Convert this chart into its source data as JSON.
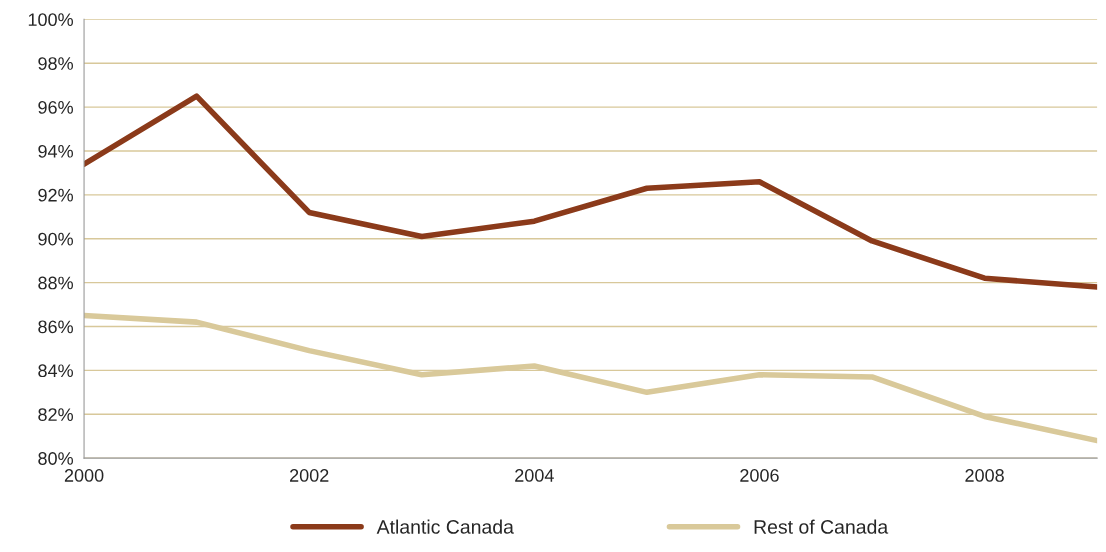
{
  "chart_data": {
    "type": "line",
    "x": [
      2000,
      2001,
      2002,
      2003,
      2004,
      2005,
      2006,
      2007,
      2008,
      2009
    ],
    "series": [
      {
        "name": "Atlantic Canada",
        "color": "#8b3a1a",
        "values": [
          93.4,
          96.5,
          91.2,
          90.1,
          90.8,
          92.3,
          92.6,
          89.9,
          88.2,
          87.8
        ]
      },
      {
        "name": "Rest of Canada",
        "color": "#d9c99a",
        "values": [
          86.5,
          86.2,
          84.9,
          83.8,
          84.2,
          83.0,
          83.8,
          83.7,
          81.9,
          80.8
        ]
      }
    ],
    "xlim": [
      2000,
      2009
    ],
    "xticks": [
      2000,
      2002,
      2004,
      2006,
      2008
    ],
    "ylim": [
      80,
      100
    ],
    "yticks": [
      {
        "value": 80,
        "label": "80%"
      },
      {
        "value": 82,
        "label": "82%"
      },
      {
        "value": 84,
        "label": "84%"
      },
      {
        "value": 86,
        "label": "86%"
      },
      {
        "value": 88,
        "label": "88%"
      },
      {
        "value": 90,
        "label": "90%"
      },
      {
        "value": 92,
        "label": "92%"
      },
      {
        "value": 94,
        "label": "94%"
      },
      {
        "value": 96,
        "label": "96%"
      },
      {
        "value": 98,
        "label": "98%"
      },
      {
        "value": 100,
        "label": "100%"
      }
    ],
    "grid": "y",
    "legend": "bottom",
    "line_style": "solid",
    "marker": "none"
  }
}
